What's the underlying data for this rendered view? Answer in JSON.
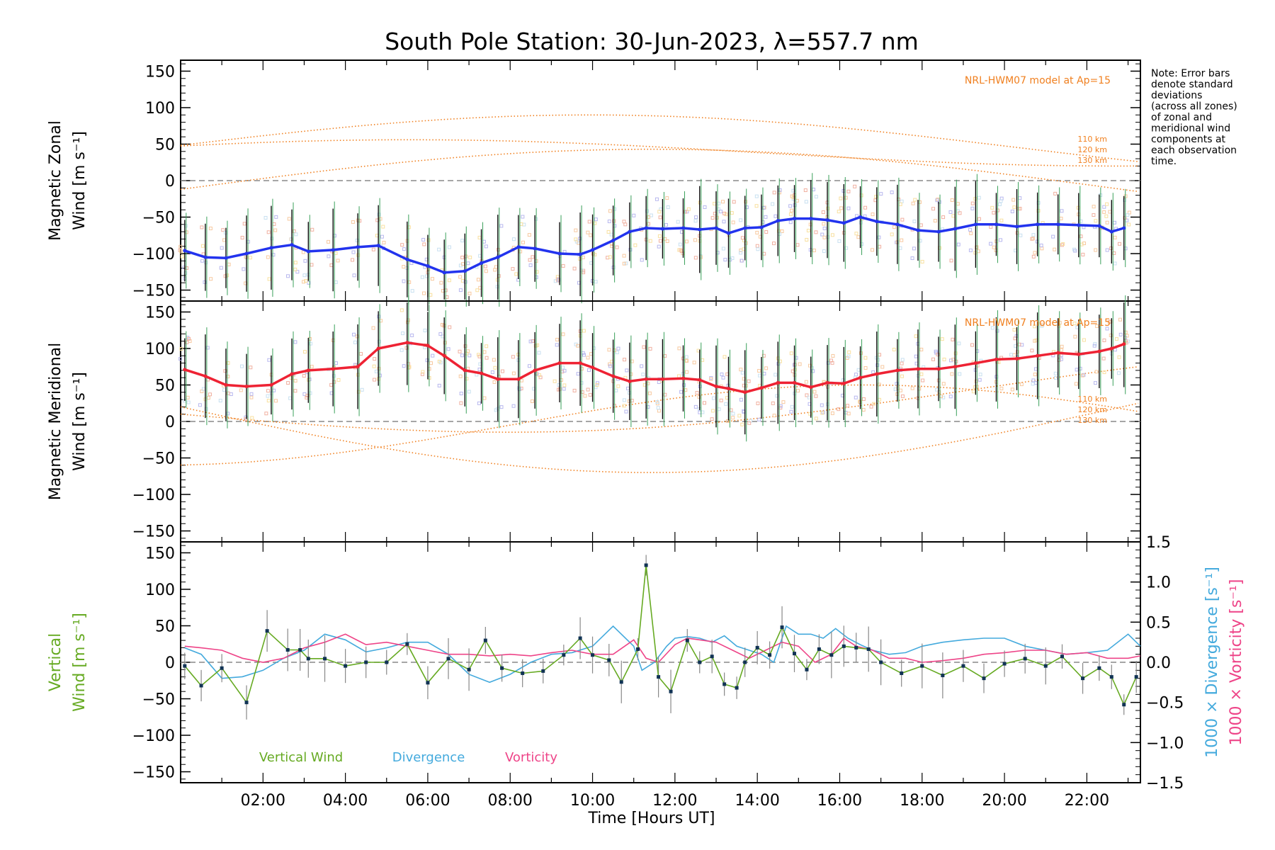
{
  "title": "South Pole Station: 30-Jun-2023, λ=557.7 nm",
  "note": [
    "Note: Error bars",
    "denote standard",
    "deviations",
    "(across all zones)",
    "of zonal and",
    "meridional wind",
    "components at",
    "each observation",
    "time."
  ],
  "model_label": "NRL-HWM07 model at Ap=15",
  "altitude_labels": [
    "110 km",
    "120 km",
    "130 km"
  ],
  "colors": {
    "zonal_line": "#2233ee",
    "meridional_line": "#ee2233",
    "vertical": "#66aa22",
    "divergence": "#44aadd",
    "vorticity": "#ee4488",
    "model": "#f08020",
    "zero_line": "#888888"
  },
  "chart_data": [
    {
      "type": "line",
      "panel": "zonal",
      "ylabel_lines": [
        "Magnetic Zonal",
        "Wind"
      ],
      "ylabel_unit": "[m s⁻¹]",
      "ylim": [
        -165,
        165
      ],
      "yticks": [
        -150,
        -100,
        -50,
        0,
        50,
        100,
        150
      ],
      "x": [
        0.1,
        0.6,
        1.1,
        1.6,
        2.2,
        2.7,
        3.1,
        3.7,
        4.3,
        4.8,
        5.5,
        6.0,
        6.4,
        6.9,
        7.3,
        7.7,
        8.2,
        8.6,
        9.2,
        9.7,
        10.0,
        10.5,
        10.9,
        11.3,
        11.7,
        12.2,
        12.6,
        13.0,
        13.3,
        13.7,
        14.1,
        14.5,
        14.9,
        15.3,
        15.7,
        16.1,
        16.5,
        16.9,
        17.4,
        17.9,
        18.4,
        18.8,
        19.3,
        19.8,
        20.3,
        20.8,
        21.3,
        21.8,
        22.3,
        22.6,
        22.9
      ],
      "series": [
        {
          "name": "Zonal wind",
          "values": [
            -96,
            -105,
            -106,
            -100,
            -92,
            -88,
            -97,
            -95,
            -91,
            -89,
            -108,
            -117,
            -126,
            -124,
            -113,
            -105,
            -91,
            -93,
            -100,
            -101,
            -95,
            -82,
            -70,
            -65,
            -66,
            -65,
            -67,
            -65,
            -72,
            -65,
            -64,
            -55,
            -52,
            -52,
            -54,
            -58,
            -50,
            -56,
            -60,
            -68,
            -70,
            -66,
            -60,
            -60,
            -63,
            -60,
            -60,
            -61,
            -62,
            -70,
            -65
          ]
        }
      ]
    },
    {
      "type": "line",
      "panel": "meridional",
      "ylabel_lines": [
        "Magnetic Meridional",
        "Wind"
      ],
      "ylabel_unit": "[m s⁻¹]",
      "ylim": [
        -165,
        165
      ],
      "yticks": [
        -150,
        -100,
        -50,
        0,
        50,
        100,
        150
      ],
      "x": [
        0.1,
        0.6,
        1.1,
        1.6,
        2.2,
        2.7,
        3.1,
        3.7,
        4.3,
        4.8,
        5.5,
        6.0,
        6.4,
        6.9,
        7.3,
        7.7,
        8.2,
        8.6,
        9.2,
        9.7,
        10.0,
        10.5,
        10.9,
        11.3,
        11.7,
        12.2,
        12.6,
        13.0,
        13.3,
        13.7,
        14.1,
        14.5,
        14.9,
        15.3,
        15.7,
        16.1,
        16.5,
        16.9,
        17.4,
        17.9,
        18.4,
        18.8,
        19.3,
        19.8,
        20.3,
        20.8,
        21.3,
        21.8,
        22.3,
        22.6,
        22.9
      ],
      "series": [
        {
          "name": "Meridional wind",
          "values": [
            71,
            62,
            50,
            48,
            50,
            65,
            70,
            72,
            75,
            100,
            108,
            104,
            90,
            70,
            66,
            58,
            58,
            70,
            80,
            80,
            74,
            62,
            55,
            58,
            58,
            59,
            57,
            48,
            45,
            40,
            46,
            53,
            53,
            47,
            53,
            52,
            60,
            65,
            70,
            72,
            72,
            75,
            80,
            85,
            86,
            90,
            94,
            92,
            96,
            100,
            106
          ]
        }
      ]
    },
    {
      "type": "line",
      "panel": "vertical",
      "ylabel_lines": [
        "Vertical",
        "Wind"
      ],
      "ylabel_unit": "[m s⁻¹]",
      "ylim": [
        -165,
        165
      ],
      "yticks": [
        -150,
        -100,
        -50,
        0,
        50,
        100,
        150
      ],
      "right_ylim": [
        -1.5,
        1.5
      ],
      "right_yticks": [
        -1.5,
        -1.0,
        -0.5,
        0.0,
        0.5,
        1.0,
        1.5
      ],
      "right_ylabel_divergence": "1000 × Divergence [s⁻¹]",
      "right_ylabel_vorticity": "1000 × Vorticity [s⁻¹]",
      "xlabel": "Time [Hours UT]",
      "xticks": [
        "02:00",
        "04:00",
        "06:00",
        "08:00",
        "10:00",
        "12:00",
        "14:00",
        "16:00",
        "18:00",
        "20:00",
        "22:00"
      ],
      "xtick_values": [
        2,
        4,
        6,
        8,
        10,
        12,
        14,
        16,
        18,
        20,
        22
      ],
      "xlim": [
        0.0,
        23.3
      ],
      "legend": [
        "Vertical Wind",
        "Divergence",
        "Vorticity"
      ],
      "x_vertical": [
        0.1,
        0.5,
        1.0,
        1.6,
        2.1,
        2.6,
        2.9,
        3.1,
        3.5,
        4.0,
        4.5,
        5.0,
        5.5,
        6.0,
        6.5,
        7.0,
        7.4,
        7.8,
        8.3,
        8.8,
        9.3,
        9.7,
        10.0,
        10.4,
        10.7,
        11.1,
        11.3,
        11.6,
        11.9,
        12.3,
        12.6,
        12.9,
        13.2,
        13.5,
        13.7,
        14.0,
        14.3,
        14.6,
        14.9,
        15.2,
        15.5,
        15.8,
        16.1,
        16.4,
        16.7,
        17.0,
        17.5,
        18.0,
        18.5,
        19.0,
        19.5,
        20.0,
        20.5,
        21.0,
        21.4,
        21.9,
        22.3,
        22.6,
        22.9,
        23.2
      ],
      "series": [
        {
          "name": "Vertical Wind",
          "axis": "left",
          "values": [
            -5,
            -32,
            -8,
            -55,
            43,
            17,
            17,
            5,
            5,
            -5,
            0,
            0,
            25,
            -28,
            5,
            -10,
            30,
            -8,
            -15,
            -12,
            10,
            33,
            10,
            3,
            -27,
            18,
            133,
            -20,
            -40,
            30,
            0,
            8,
            -30,
            -35,
            0,
            20,
            10,
            48,
            12,
            -10,
            18,
            10,
            22,
            20,
            18,
            0,
            -15,
            -5,
            -18,
            -5,
            -22,
            -2,
            5,
            -5,
            8,
            -22,
            -8,
            -20,
            -58,
            -20
          ]
        },
        {
          "name": "Divergence",
          "axis": "right",
          "x": [
            0.1,
            0.5,
            1.0,
            1.5,
            2.0,
            2.5,
            3.0,
            3.5,
            4.0,
            4.5,
            5.0,
            5.5,
            6.0,
            6.5,
            7.0,
            7.5,
            8.0,
            8.5,
            9.0,
            9.5,
            10.0,
            10.5,
            11.0,
            11.2,
            11.5,
            11.8,
            12.0,
            12.3,
            12.6,
            12.9,
            13.2,
            13.5,
            13.8,
            14.1,
            14.4,
            14.7,
            15.0,
            15.3,
            15.6,
            15.9,
            16.2,
            16.5,
            16.8,
            17.2,
            17.6,
            18.0,
            18.5,
            19.0,
            19.5,
            20.0,
            20.5,
            21.0,
            21.5,
            22.0,
            22.5,
            23.0,
            23.3
          ],
          "values": [
            0.18,
            0.1,
            -0.2,
            -0.18,
            -0.1,
            0.05,
            0.15,
            0.35,
            0.28,
            0.13,
            0.18,
            0.25,
            0.25,
            0.1,
            -0.15,
            -0.25,
            -0.15,
            0.0,
            0.1,
            0.12,
            0.2,
            0.45,
            0.2,
            -0.1,
            0.0,
            0.2,
            0.3,
            0.32,
            0.3,
            0.25,
            0.33,
            0.2,
            0.15,
            0.1,
            0.0,
            0.45,
            0.35,
            0.35,
            0.3,
            0.42,
            0.3,
            0.22,
            0.15,
            0.1,
            0.12,
            0.2,
            0.25,
            0.28,
            0.3,
            0.3,
            0.2,
            0.15,
            0.1,
            0.12,
            0.15,
            0.35,
            0.2
          ]
        },
        {
          "name": "Vorticity",
          "axis": "right",
          "x": [
            0.1,
            0.5,
            1.0,
            1.5,
            2.0,
            2.5,
            3.0,
            3.5,
            4.0,
            4.5,
            5.0,
            5.5,
            6.0,
            6.5,
            7.0,
            7.5,
            8.0,
            8.5,
            9.0,
            9.5,
            10.0,
            10.5,
            11.0,
            11.3,
            11.6,
            12.0,
            12.3,
            12.6,
            13.0,
            13.4,
            13.8,
            14.2,
            14.6,
            15.0,
            15.4,
            15.8,
            16.1,
            16.4,
            16.8,
            17.2,
            17.6,
            18.0,
            18.5,
            19.0,
            19.5,
            20.0,
            20.5,
            21.0,
            21.5,
            22.0,
            22.5,
            23.0,
            23.3
          ],
          "values": [
            0.2,
            0.18,
            0.15,
            0.05,
            0.0,
            0.05,
            0.18,
            0.25,
            0.35,
            0.22,
            0.25,
            0.2,
            0.15,
            0.1,
            0.1,
            0.08,
            0.1,
            0.08,
            0.12,
            0.15,
            0.1,
            0.1,
            0.28,
            0.05,
            0.0,
            0.22,
            0.3,
            0.28,
            0.25,
            0.15,
            0.05,
            0.15,
            0.25,
            0.2,
            0.0,
            0.1,
            0.3,
            0.2,
            0.15,
            0.05,
            0.05,
            0.0,
            0.02,
            0.05,
            0.1,
            0.12,
            0.15,
            0.15,
            0.1,
            0.12,
            0.05,
            0.05,
            0.08
          ]
        }
      ]
    }
  ]
}
